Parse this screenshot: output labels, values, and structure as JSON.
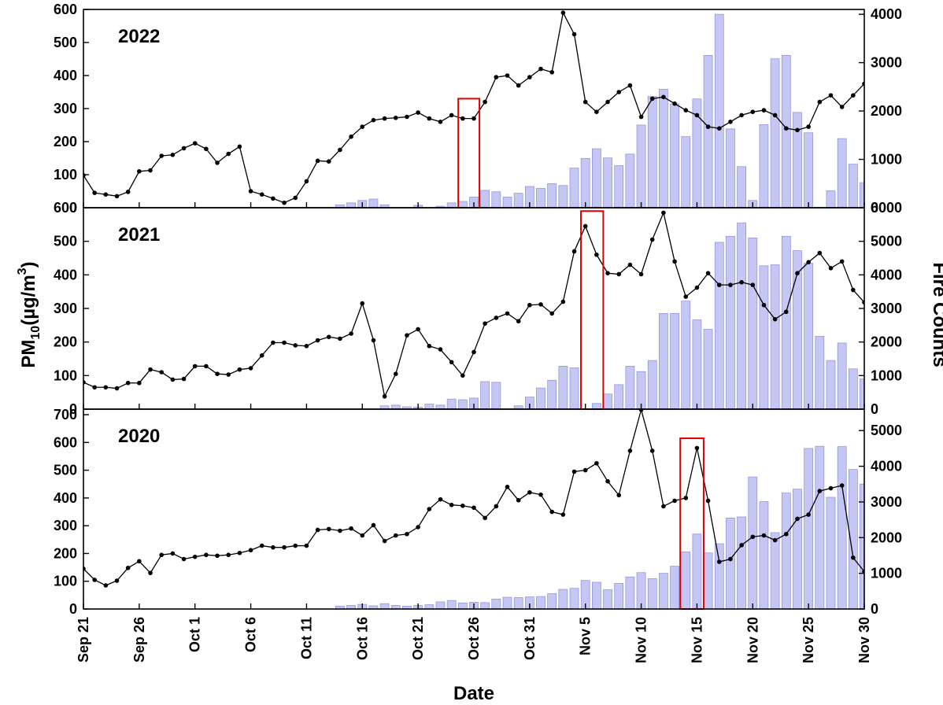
{
  "chart_data": {
    "type": "bar",
    "x_start": "Sep 21",
    "x_end": "Nov 30",
    "x_tick_labels": [
      "Sep 21",
      "Sep 26",
      "Oct 1",
      "Oct 6",
      "Oct 11",
      "Oct 16",
      "Oct 21",
      "Oct 26",
      "Oct 31",
      "Nov 5",
      "Nov 10",
      "Nov 15",
      "Nov 20",
      "Nov 25",
      "Nov 30"
    ],
    "xlabel": "Date",
    "ylabel_main": "PM",
    "ylabel_sub": "10",
    "ylabel_unit": "(µg/m",
    "ylabel_sup": "3",
    "ylabel_close": ")",
    "y2label": "Fire Counts",
    "colors": {
      "bar_fill": "#c4c6f4",
      "bar_edge": "#8c8fd9",
      "line": "#000000",
      "highlight": "#e00000"
    },
    "panels": [
      {
        "title": "2022",
        "ylim": [
          0,
          600
        ],
        "yticks": [
          0,
          100,
          200,
          300,
          400,
          500,
          600
        ],
        "y2lim": [
          0,
          4100
        ],
        "y2ticks": [
          0,
          1000,
          2000,
          3000,
          4000
        ],
        "highlight_days": [
          33.6,
          35.5
        ],
        "pm10": [
          98,
          45,
          40,
          35,
          48,
          110,
          113,
          157,
          160,
          180,
          195,
          178,
          136,
          163,
          185,
          50,
          40,
          28,
          15,
          30,
          80,
          142,
          140,
          175,
          215,
          245,
          265,
          270,
          272,
          275,
          288,
          270,
          260,
          280,
          270,
          270,
          320,
          395,
          400,
          370,
          395,
          420,
          410,
          590,
          525,
          320,
          290,
          320,
          350,
          370,
          275,
          330,
          335,
          315,
          295,
          280,
          245,
          240,
          260,
          280,
          290,
          295,
          280,
          240,
          235,
          245,
          320,
          340,
          305,
          340,
          375,
          340
        ],
        "fire": [
          0,
          0,
          0,
          0,
          0,
          0,
          0,
          0,
          0,
          0,
          0,
          0,
          0,
          0,
          0,
          0,
          0,
          0,
          0,
          0,
          0,
          0,
          0,
          60,
          100,
          150,
          180,
          60,
          0,
          0,
          50,
          0,
          30,
          100,
          130,
          220,
          360,
          330,
          220,
          300,
          440,
          400,
          500,
          460,
          820,
          1020,
          1220,
          1030,
          870,
          1110,
          1710,
          2300,
          2450,
          2150,
          1470,
          2250,
          3150,
          4000,
          1630,
          850,
          150,
          1720,
          3080,
          3150,
          1970,
          1550,
          0,
          350,
          1430,
          900,
          520,
          600,
          420,
          300,
          200,
          120,
          100,
          60,
          50,
          50,
          70,
          60,
          50,
          30
        ]
      },
      {
        "title": "2021",
        "ylim": [
          0,
          600
        ],
        "yticks": [
          0,
          100,
          200,
          300,
          400,
          500,
          600
        ],
        "y2lim": [
          0,
          6000
        ],
        "y2ticks": [
          0,
          1000,
          2000,
          3000,
          4000,
          5000,
          6000
        ],
        "highlight_days": [
          44.6,
          46.6
        ],
        "pm10": [
          80,
          65,
          65,
          62,
          78,
          78,
          118,
          110,
          88,
          90,
          128,
          128,
          105,
          103,
          118,
          122,
          160,
          198,
          198,
          190,
          188,
          205,
          215,
          210,
          225,
          315,
          205,
          38,
          105,
          220,
          238,
          188,
          178,
          140,
          100,
          170,
          255,
          272,
          285,
          262,
          310,
          312,
          285,
          320,
          470,
          545,
          460,
          405,
          402,
          430,
          402,
          505,
          585,
          440,
          335,
          362,
          405,
          370,
          370,
          378,
          370,
          310,
          268,
          290,
          405,
          438,
          465,
          420,
          440,
          355,
          318,
          285
        ],
        "fire": [
          0,
          0,
          0,
          0,
          0,
          0,
          0,
          0,
          0,
          0,
          0,
          0,
          0,
          0,
          0,
          0,
          0,
          0,
          0,
          0,
          0,
          0,
          0,
          0,
          0,
          0,
          0,
          100,
          120,
          70,
          60,
          150,
          120,
          300,
          280,
          330,
          820,
          800,
          0,
          100,
          360,
          630,
          860,
          1280,
          1230,
          0,
          170,
          450,
          730,
          1280,
          1120,
          1450,
          2850,
          2850,
          3220,
          2660,
          2380,
          4970,
          5150,
          5550,
          5100,
          4270,
          4300,
          5150,
          4720,
          4350,
          2170,
          1450,
          1970,
          1200,
          900,
          550,
          250,
          350,
          200,
          150,
          120,
          50,
          30,
          20,
          20,
          50,
          30
        ]
      },
      {
        "title": "2020",
        "ylim": [
          0,
          720
        ],
        "yticks": [
          0,
          100,
          200,
          300,
          400,
          500,
          600,
          700
        ],
        "y2lim": [
          0,
          5600
        ],
        "y2ticks": [
          0,
          1000,
          2000,
          3000,
          4000,
          5000
        ],
        "highlight_days": [
          53.5,
          55.6
        ],
        "pm10": [
          145,
          105,
          85,
          102,
          148,
          172,
          130,
          195,
          200,
          180,
          188,
          195,
          192,
          195,
          202,
          212,
          228,
          222,
          222,
          228,
          228,
          285,
          288,
          282,
          290,
          265,
          302,
          245,
          265,
          270,
          295,
          360,
          395,
          375,
          372,
          365,
          328,
          370,
          440,
          392,
          420,
          412,
          350,
          340,
          495,
          500,
          525,
          460,
          410,
          570,
          718,
          570,
          370,
          390,
          400,
          580,
          390,
          170,
          180,
          230,
          260,
          265,
          248,
          270,
          325,
          340,
          425,
          435,
          445,
          185,
          135,
          170,
          210,
          240,
          320
        ],
        "fire": [
          0,
          0,
          0,
          0,
          0,
          0,
          0,
          0,
          0,
          0,
          0,
          0,
          0,
          0,
          0,
          0,
          0,
          0,
          0,
          0,
          0,
          0,
          0,
          80,
          100,
          130,
          90,
          150,
          100,
          80,
          100,
          120,
          200,
          240,
          170,
          190,
          180,
          280,
          330,
          320,
          340,
          350,
          430,
          550,
          580,
          800,
          750,
          540,
          720,
          900,
          1020,
          850,
          1000,
          1200,
          1600,
          2100,
          1570,
          1830,
          2550,
          2580,
          3700,
          3010,
          2140,
          3250,
          3360,
          4500,
          4560,
          3130,
          4550,
          3910,
          3500,
          3720,
          2860,
          1570,
          750,
          2160,
          1150,
          600,
          0,
          700,
          800,
          780,
          600,
          0,
          0,
          0,
          0,
          100,
          150,
          100
        ]
      }
    ]
  }
}
